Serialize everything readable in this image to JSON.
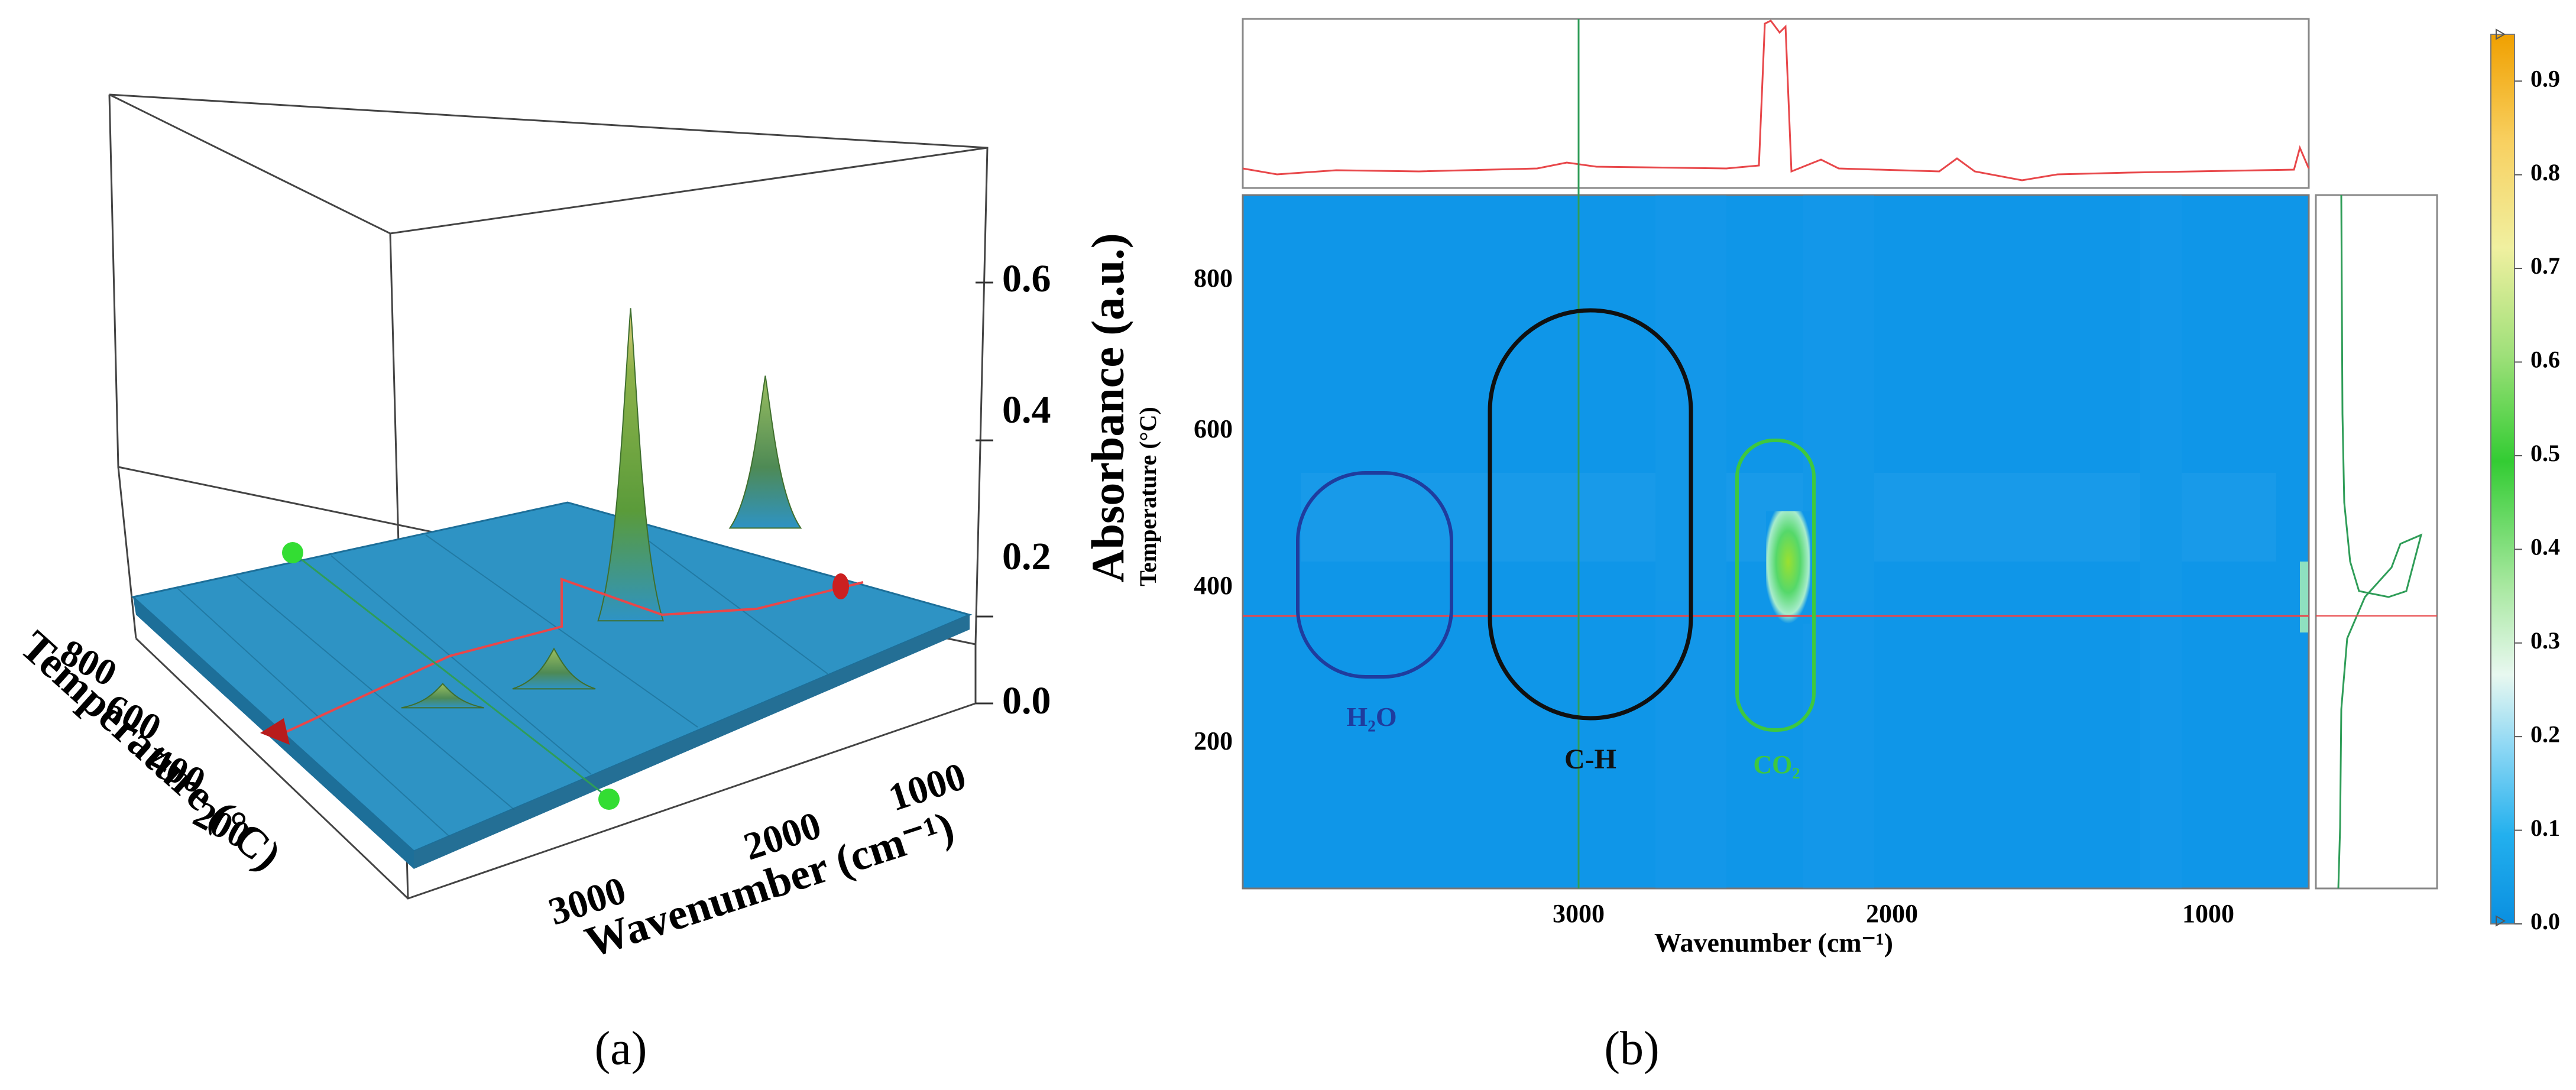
{
  "colors": {
    "surface": "#2e93c4",
    "surface_dark": "#1d6f99",
    "map_bg": "#0f96e8",
    "crosshair_red": "#e8474a",
    "crosshair_green": "#2f9d58",
    "peak_green": "#5a9b3a",
    "peak_yellow": "#d9c47a",
    "h2o_ring": "#1f3c9e",
    "ch_ring": "#101010",
    "co2_ring": "#3ec83e"
  },
  "chart_data": [
    {
      "panel": "(a)",
      "type": "surface3d",
      "zlabel": "Absorbance (a.u.)",
      "ylabel": "Temperature (°C)",
      "xlabel": "Wavenumber (cm⁻¹)",
      "zticks": [
        "0.0",
        "0.2",
        "0.4",
        "0.6"
      ],
      "temp_ticks": [
        "800",
        "600",
        "400",
        "200"
      ],
      "wn_ticks": [
        "3000",
        "2000",
        "1000"
      ],
      "peaks": [
        {
          "wavenumber": 2350,
          "temperature": 420,
          "absorbance": 0.78
        },
        {
          "wavenumber": 1450,
          "temperature": 520,
          "absorbance": 0.38
        },
        {
          "wavenumber": 2900,
          "temperature": 320,
          "absorbance": 0.1
        },
        {
          "wavenumber": 3500,
          "temperature": 400,
          "absorbance": 0.06
        }
      ]
    },
    {
      "panel": "(b)",
      "type": "heatmap",
      "xlabel": "Wavenumber (cm⁻¹)",
      "ylabel": "Temperature (°C)",
      "xticks": [
        "3000",
        "2000",
        "1000"
      ],
      "yticks": [
        "800",
        "600",
        "400",
        "200"
      ],
      "xlim": [
        4000,
        650
      ],
      "ylim": [
        30,
        900
      ],
      "colorbar_ticks": [
        "0.0",
        "0.1",
        "0.2",
        "0.3",
        "0.4",
        "0.5",
        "0.6",
        "0.7",
        "0.8",
        "0.9"
      ],
      "colorbar_range": [
        0.0,
        0.95
      ],
      "crosshair": {
        "wavenumber": 2930,
        "temperature": 370
      },
      "hotspot": {
        "wavenumber": 2340,
        "temperature": 440,
        "absorbance": 0.45
      },
      "regions": [
        {
          "label": "H₂O",
          "wavenumber_range": [
            3850,
            3350
          ],
          "temperature_range": [
            290,
            550
          ]
        },
        {
          "label": "C-H",
          "wavenumber_range": [
            3200,
            2570
          ],
          "temperature_range": [
            235,
            750
          ]
        },
        {
          "label": "CO₂",
          "wavenumber_range": [
            2480,
            2230
          ],
          "temperature_range": [
            215,
            610
          ]
        }
      ]
    }
  ],
  "panel_labels": {
    "a": "(a)",
    "b": "(b)"
  }
}
